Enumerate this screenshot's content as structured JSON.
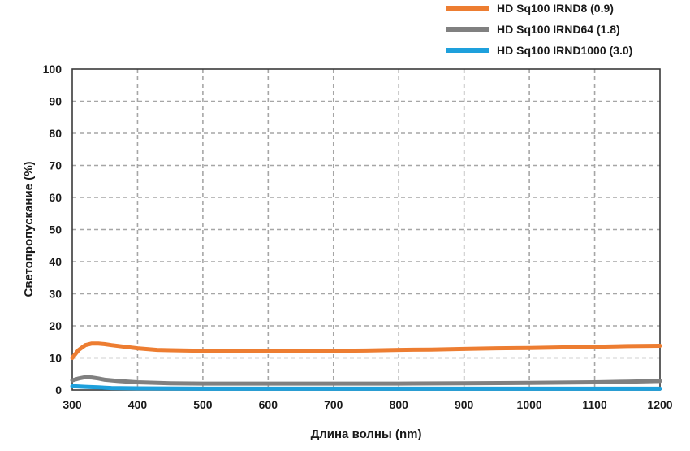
{
  "chart_data": {
    "type": "line",
    "xlabel": "Длина волны (nm)",
    "ylabel": "Светопропускание (%)",
    "xlim": [
      300,
      1200
    ],
    "ylim": [
      0,
      100
    ],
    "x_ticks": [
      "300",
      "400",
      "500",
      "600",
      "700",
      "800",
      "900",
      "1000",
      "1100",
      "1200"
    ],
    "y_ticks": [
      "0",
      "10",
      "20",
      "30",
      "40",
      "50",
      "60",
      "70",
      "80",
      "90",
      "100"
    ],
    "grid": true,
    "legend_position": "top-right",
    "series": [
      {
        "name": "HD Sq100 IRND8 (0.9)",
        "color": "#ed7d31",
        "x": [
          300,
          310,
          320,
          330,
          340,
          350,
          360,
          380,
          400,
          430,
          450,
          500,
          550,
          600,
          650,
          700,
          750,
          800,
          850,
          900,
          950,
          1000,
          1050,
          1100,
          1150,
          1200
        ],
        "y": [
          10,
          12.5,
          14,
          14.5,
          14.5,
          14.3,
          14,
          13.5,
          13,
          12.5,
          12.4,
          12.2,
          12.1,
          12.1,
          12.1,
          12.2,
          12.3,
          12.5,
          12.6,
          12.8,
          13,
          13.1,
          13.3,
          13.5,
          13.7,
          13.8
        ]
      },
      {
        "name": "HD Sq100 IRND64 (1.8)",
        "color": "#808080",
        "x": [
          300,
          310,
          320,
          330,
          340,
          350,
          370,
          400,
          450,
          500,
          600,
          700,
          800,
          900,
          1000,
          1100,
          1150,
          1200
        ],
        "y": [
          3,
          3.6,
          4,
          3.9,
          3.6,
          3.2,
          2.8,
          2.4,
          2.1,
          2,
          2,
          2,
          2,
          2.1,
          2.2,
          2.4,
          2.6,
          2.8
        ]
      },
      {
        "name": "HD Sq100 IRND1000 (3.0)",
        "color": "#1ea0dc",
        "x": [
          300,
          320,
          340,
          360,
          400,
          500,
          600,
          800,
          1000,
          1200
        ],
        "y": [
          1.2,
          1.0,
          0.8,
          0.6,
          0.5,
          0.4,
          0.4,
          0.4,
          0.4,
          0.4
        ]
      }
    ]
  }
}
